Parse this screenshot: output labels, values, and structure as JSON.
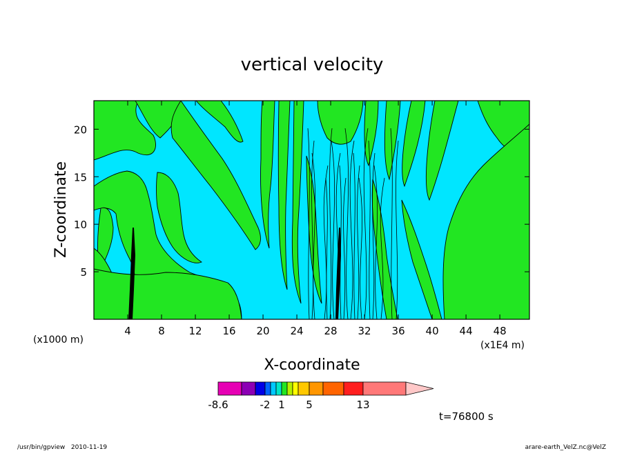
{
  "chart_data": {
    "type": "heatmap",
    "title": "vertical velocity",
    "xlabel": "X-coordinate",
    "ylabel": "Z-coordinate",
    "x_unit_label": "(x1E4 m)",
    "y_unit_label": "(x1000 m)",
    "xlim": [
      0,
      51.5
    ],
    "ylim": [
      0,
      23
    ],
    "x_ticks": [
      4,
      8,
      12,
      16,
      20,
      24,
      28,
      32,
      36,
      40,
      44,
      48
    ],
    "y_ticks": [
      5,
      10,
      15,
      20
    ],
    "colors": {
      "background": "#00e6ff",
      "positive_region": "#22e622",
      "contour_line": "#000000"
    },
    "colorbar": {
      "tick_labels": [
        "-8.6",
        "-2",
        "1",
        "5",
        "13"
      ],
      "colors": [
        "#e600b4",
        "#8c00b4",
        "#0000e6",
        "#0064ff",
        "#00c8ff",
        "#00e6c8",
        "#22e622",
        "#b4f000",
        "#ffff00",
        "#ffc800",
        "#ff9600",
        "#ff6400",
        "#ff1e1e",
        "#ff7878",
        "#ffb4b4",
        "#ffc8c8"
      ],
      "extend": "right"
    },
    "time_label": "t=76800 s"
  },
  "footer": {
    "left": "/usr/bin/gpview   2010-11-19",
    "right": "arare-earth_VelZ.nc@VelZ"
  }
}
